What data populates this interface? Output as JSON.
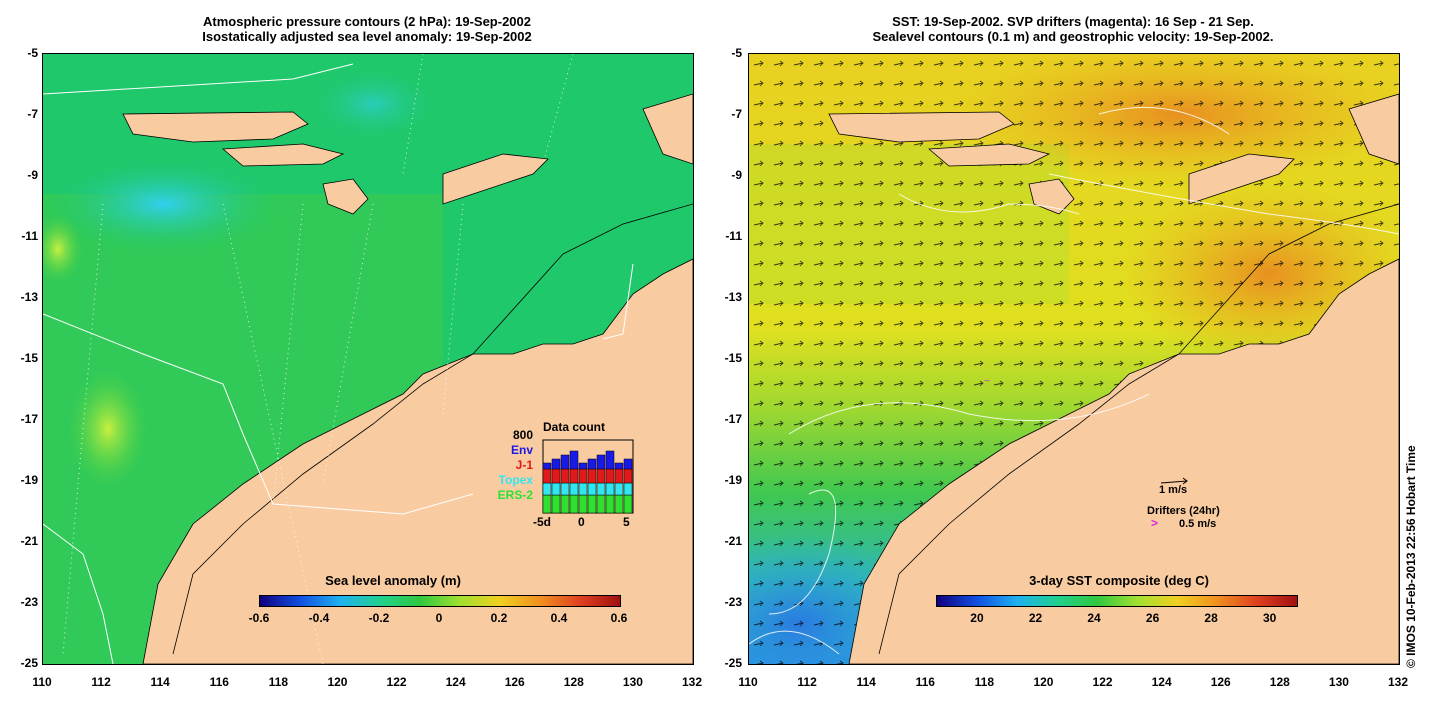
{
  "left_panel": {
    "title_line1": "Atmospheric pressure contours (2 hPa): 19-Sep-2002",
    "title_line2": "Isostatically adjusted sea level anomaly: 19-Sep-2002",
    "colorbar_title": "Sea level anomaly (m)",
    "colorbar_ticks": [
      "-0.6",
      "-0.4",
      "-0.2",
      "0",
      "0.2",
      "0.4",
      "0.6"
    ],
    "data_count": {
      "title": "Data count",
      "max_label": "800",
      "legend": [
        {
          "label": "Env",
          "color": "#1a1ae6"
        },
        {
          "label": "J-1",
          "color": "#e01a1a"
        },
        {
          "label": "Topex",
          "color": "#30e6f0"
        },
        {
          "label": "ERS-2",
          "color": "#30e030"
        }
      ],
      "x_ticks": [
        "-5d",
        "0",
        "5"
      ]
    }
  },
  "right_panel": {
    "title_line1": "SST: 19-Sep-2002. SVP drifters (magenta): 16 Sep - 21 Sep.",
    "title_line2": "Sealevel contours (0.1 m) and geostrophic velocity: 19-Sep-2002.",
    "colorbar_title": "3-day SST composite (deg C)",
    "colorbar_ticks": [
      "20",
      "22",
      "24",
      "26",
      "28",
      "30"
    ],
    "velocity_scale_label": "1 m/s",
    "drifters_label": "Drifters (24hr)",
    "drifter_scale_label": "0.5 m/s",
    "drifter_symbol": ">"
  },
  "axes": {
    "lat_ticks": [
      "-5",
      "-7",
      "-9",
      "-11",
      "-13",
      "-15",
      "-17",
      "-19",
      "-21",
      "-23",
      "-25"
    ],
    "lon_ticks": [
      "110",
      "112",
      "114",
      "116",
      "118",
      "120",
      "122",
      "124",
      "126",
      "128",
      "130",
      "132"
    ]
  },
  "credit": "© IMOS 10-Feb-2013 22:56 Hobart Time",
  "colors": {
    "land": "#f9cba0",
    "sla_bg": "#1fc86a",
    "sst_bg": "#e8e020",
    "sst_warm": "#f0a020",
    "sst_cool": "#2ab0e0",
    "drifter": "#e020e0"
  }
}
